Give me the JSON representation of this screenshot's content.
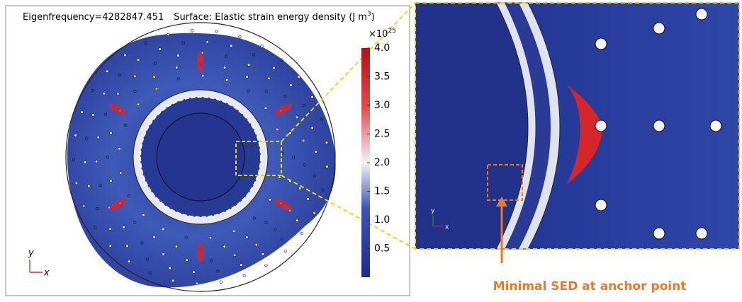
{
  "left_panel": {
    "title": "Eigenfrequency=4282847.451",
    "surface_label": "Surface: Elastic strain energy density (J m",
    "surface_unit_exponent": "3",
    "surface_label_end": ")",
    "axis_y": "y",
    "axis_x": "x"
  },
  "colorbar": {
    "multiplier": "×10",
    "exponent": "25",
    "range": [
      0,
      4.0
    ],
    "ticks": [
      {
        "value": 4,
        "label": "4.0"
      },
      3.5,
      {
        "value": 3,
        "label": "3.0"
      },
      2.5,
      {
        "value": 2,
        "label": "2.0"
      },
      1.5,
      {
        "value": 1,
        "label": "1.0"
      },
      0.5
    ]
  },
  "zoom_panel": {
    "axis_y": "y",
    "axis_x": "x"
  },
  "annotation": "Minimal SED at anchor point"
}
